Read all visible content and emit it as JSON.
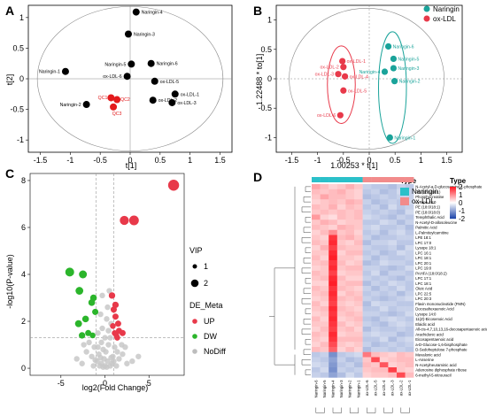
{
  "panels": [
    {
      "label": "A"
    },
    {
      "label": "B"
    },
    {
      "label": "C"
    },
    {
      "label": "D"
    }
  ],
  "chart_data": [
    {
      "type": "scatter",
      "xlabel": "t[1]",
      "ylabel": "t[2]",
      "xlim": [
        -1.7,
        1.7
      ],
      "ylim": [
        -1.2,
        1.2
      ],
      "xticks": [
        "-1.5",
        "-1",
        "-0.5",
        "0",
        "0.5",
        "1",
        "1.5"
      ],
      "yticks": [
        "-1",
        "-0.5",
        "0",
        "0.5",
        "1"
      ],
      "xtick_values": [
        -1.5,
        -1,
        -0.5,
        0,
        0.5,
        1,
        1.5
      ],
      "ytick_values": [
        -1,
        -0.5,
        0,
        0.5,
        1
      ],
      "points": [
        {
          "label": "Naringin-4",
          "x": 0.1,
          "y": 1.09,
          "color": "#000000"
        },
        {
          "label": "Naringin-3",
          "x": -0.03,
          "y": 0.73,
          "color": "#000000"
        },
        {
          "label": "Naringin-1",
          "x": -1.08,
          "y": 0.12,
          "color": "#000000"
        },
        {
          "label": "Naringin-5",
          "x": 0.02,
          "y": 0.24,
          "color": "#000000"
        },
        {
          "label": "Naringin-6",
          "x": 0.35,
          "y": 0.25,
          "color": "#000000"
        },
        {
          "label": "ox-LDL-6",
          "x": -0.05,
          "y": 0.04,
          "color": "#000000"
        },
        {
          "label": "ox-LDL-5",
          "x": 0.41,
          "y": -0.04,
          "color": "#000000"
        },
        {
          "label": "ox-LDL-1",
          "x": 0.75,
          "y": -0.25,
          "color": "#000000"
        },
        {
          "label": "ox-LDL-2",
          "x": 0.38,
          "y": -0.35,
          "color": "#000000"
        },
        {
          "label": "ox-LDL-3",
          "x": 0.7,
          "y": -0.39,
          "color": "#000000"
        },
        {
          "label": "Naringin-2",
          "x": -0.73,
          "y": -0.42,
          "color": "#000000"
        },
        {
          "label": "QC1",
          "x": -0.32,
          "y": -0.31,
          "color": "#e31a1c"
        },
        {
          "label": "QC2",
          "x": -0.22,
          "y": -0.34,
          "color": "#e31a1c"
        },
        {
          "label": "QC3",
          "x": -0.28,
          "y": -0.46,
          "color": "#e31a1c"
        }
      ]
    },
    {
      "type": "scatter",
      "xlabel": "1.00253 * t[1]",
      "ylabel": "1.22488 * to[1]",
      "xlim": [
        -1.8,
        1.8
      ],
      "ylim": [
        -1.25,
        1.25
      ],
      "xticks": [
        "-1.5",
        "-1",
        "-0.5",
        "0",
        "0.5",
        "1",
        "1.5"
      ],
      "yticks": [
        "-1",
        "-0.5",
        "0",
        "0.5",
        "1"
      ],
      "xtick_values": [
        -1.5,
        -1,
        -0.5,
        0,
        0.5,
        1,
        1.5
      ],
      "ytick_values": [
        -1,
        -0.5,
        0,
        0.5,
        1
      ],
      "legend": [
        "Naringin",
        "ox-LDL"
      ],
      "legend_colors": [
        "#1aa39a",
        "#e8394a"
      ],
      "points": [
        {
          "label": "Naringin-6",
          "x": 0.37,
          "y": 0.55,
          "color": "#1aa39a"
        },
        {
          "label": "Naringin-5",
          "x": 0.47,
          "y": 0.34,
          "color": "#1aa39a"
        },
        {
          "label": "Naringin-4",
          "x": 0.3,
          "y": 0.12,
          "color": "#1aa39a"
        },
        {
          "label": "Naringin-3",
          "x": 0.47,
          "y": 0.18,
          "color": "#1aa39a"
        },
        {
          "label": "Naringin-2",
          "x": 0.49,
          "y": -0.04,
          "color": "#1aa39a"
        },
        {
          "label": "Naringin-1",
          "x": 0.4,
          "y": -1.0,
          "color": "#1aa39a"
        },
        {
          "label": "ox-LDL-1",
          "x": -0.52,
          "y": 0.3,
          "color": "#e8394a"
        },
        {
          "label": "ox-LDL-2",
          "x": -0.5,
          "y": 0.2,
          "color": "#e8394a"
        },
        {
          "label": "ox-LDL-3",
          "x": -0.6,
          "y": 0.08,
          "color": "#e8394a"
        },
        {
          "label": "ox-LDL-4",
          "x": -0.47,
          "y": 0.04,
          "color": "#e8394a"
        },
        {
          "label": "ox-LDL-5",
          "x": -0.5,
          "y": -0.2,
          "color": "#e8394a"
        },
        {
          "label": "ox-LDL-6",
          "x": -0.56,
          "y": -0.62,
          "color": "#e8394a"
        }
      ]
    },
    {
      "type": "scatter",
      "xlabel": "log2(Fold Change)",
      "ylabel": "-log10(P-value)",
      "xlim": [
        -8.5,
        9
      ],
      "ylim": [
        -0.3,
        8.3
      ],
      "xticks": [
        "-5",
        "0",
        "5"
      ],
      "yticks": [
        "0",
        "2",
        "4",
        "6",
        "8"
      ],
      "xtick_values": [
        -5,
        0,
        5
      ],
      "ytick_values": [
        0,
        2,
        4,
        6,
        8
      ],
      "threshold_y": 1.3,
      "threshold_x": [
        -1,
        1
      ],
      "legend_size_title": "VIP",
      "legend_size": [
        "1",
        "2"
      ],
      "legend_color_title": "DE_Meta",
      "legend_color": [
        "UP",
        "DW",
        "NoDiff"
      ],
      "legend_color_values": [
        "#e8394a",
        "#2bb52b",
        "#bdbdbd"
      ],
      "up_points": [
        [
          7.8,
          7.8
        ],
        [
          2.2,
          6.3
        ],
        [
          3.3,
          6.3
        ],
        [
          0.8,
          3.1
        ],
        [
          1.0,
          2.5
        ],
        [
          1.2,
          2.2
        ],
        [
          1.5,
          1.9
        ],
        [
          0.9,
          1.8
        ],
        [
          1.6,
          1.6
        ],
        [
          1.1,
          1.5
        ],
        [
          1.3,
          1.4
        ],
        [
          2.0,
          1.5
        ],
        [
          1.4,
          1.3
        ],
        [
          1.2,
          2.7
        ]
      ],
      "dw_points": [
        [
          -4.0,
          4.1
        ],
        [
          -2.5,
          4.0
        ],
        [
          -2.9,
          3.3
        ],
        [
          -1.3,
          3.0
        ],
        [
          -1.1,
          2.4
        ],
        [
          -2.2,
          2.1
        ],
        [
          -3.0,
          1.9
        ],
        [
          -1.9,
          1.5
        ],
        [
          -1.4,
          1.4
        ],
        [
          -2.6,
          1.4
        ],
        [
          -1.5,
          2.8
        ]
      ],
      "nodiff_points": [
        [
          0.5,
          3.3
        ],
        [
          -0.3,
          3.1
        ],
        [
          0.3,
          2.6
        ],
        [
          -0.5,
          2.3
        ],
        [
          0.2,
          2.1
        ],
        [
          0.7,
          1.9
        ],
        [
          -0.8,
          1.5
        ],
        [
          0.6,
          1.3
        ],
        [
          -0.4,
          1.1
        ],
        [
          0.4,
          1.0
        ],
        [
          -1.2,
          0.9
        ],
        [
          1.1,
          0.9
        ],
        [
          -0.2,
          0.8
        ],
        [
          0.1,
          0.7
        ],
        [
          -2.1,
          0.7
        ],
        [
          2.0,
          0.6
        ],
        [
          -0.7,
          0.6
        ],
        [
          0.9,
          0.5
        ],
        [
          -1.5,
          0.5
        ],
        [
          1.6,
          0.4
        ],
        [
          -0.1,
          0.4
        ],
        [
          0.3,
          0.3
        ],
        [
          -0.9,
          0.3
        ],
        [
          0.8,
          0.2
        ],
        [
          -0.4,
          0.2
        ],
        [
          2.5,
          0.2
        ],
        [
          -2.6,
          0.2
        ],
        [
          0.0,
          0.1
        ],
        [
          0.6,
          0.1
        ],
        [
          -0.6,
          0.1
        ],
        [
          1.3,
          0.1
        ],
        [
          -1.3,
          0.1
        ],
        [
          0.2,
          0.05
        ],
        [
          -0.2,
          0.05
        ],
        [
          3.1,
          0.3
        ],
        [
          -3.2,
          0.4
        ],
        [
          1.9,
          1.0
        ],
        [
          -1.8,
          1.1
        ],
        [
          0.4,
          1.6
        ],
        [
          -0.3,
          1.7
        ],
        [
          2.3,
          0.9
        ],
        [
          -2.4,
          1.0
        ],
        [
          0.0,
          1.3
        ],
        [
          -0.8,
          0.9
        ],
        [
          1.4,
          0.7
        ],
        [
          3.8,
          0.5
        ],
        [
          -0.5,
          0.45
        ],
        [
          0.7,
          0.45
        ],
        [
          -1.1,
          0.35
        ],
        [
          1.0,
          0.3
        ]
      ]
    },
    {
      "type": "heatmap",
      "title": "",
      "type_legend_title": "Type",
      "legend_title": "Type",
      "columns": [
        "Naringin-6",
        "Naringin-5",
        "Naringin-4",
        "Naringin-3",
        "Naringin-2",
        "Naringin-1",
        "ox-LDL-6",
        "ox-LDL-5",
        "ox-LDL-4",
        "ox-LDL-3",
        "ox-LDL-2",
        "ox-LDL-1"
      ],
      "groups": [
        "Naringin",
        "ox-LDL"
      ],
      "group_colors": [
        "#2bc0c9",
        "#f28b8b"
      ],
      "scale_ticks": [
        "2",
        "1",
        "0",
        "-1",
        "-2"
      ],
      "scale_values": [
        2,
        1,
        0,
        -1,
        -2
      ],
      "rows": [
        "N-Acetyl-a-D-glucosamine 1-phosphate",
        "PG (18:1/18:1)",
        "Phosphocreatine",
        "Lysope 18:0",
        "PE (18:0/18:1)",
        "PE (18:0/18:0)",
        "Terephthalic Acid",
        "N-Acetyl-D-allosoleucine",
        "Palmitic Acid",
        "L-Palmitoylcarnitine",
        "LPE 18:1",
        "LPC 17:0",
        "Lysope 18:1",
        "LPC 16:1",
        "LPC 18:1",
        "LPC 20:1",
        "LPC 19:0",
        "PAHFA (18:0/18:2)",
        "LPC 17:1",
        "LPC 18:1",
        "Oleic Acid",
        "LPC 22:5",
        "LPC 20:3",
        "Flavin mononucleotide (FMN)",
        "Docosahexaenoic Acid",
        "Lysope 14:0",
        "11(Z)-Eicosenoic Acid",
        "Elaidic acid",
        "All-cis-4,7,10,13,16-docosapentaenoic acid",
        "Arachidonic acid",
        "Eicosapentaenoic acid",
        "a-D-Glucose-1,6-bisphosphate",
        "D-Sedoheptulose 7-phosphate",
        "Mevalonic acid",
        "L-Anserine",
        "N-Acetylneuraminic acid",
        "Adenosine diphosphate ribose",
        "6-methyl-5-nitrouracil"
      ],
      "values": [
        [
          0.8,
          0.6,
          0.4,
          0.5,
          0.7,
          0.5,
          -0.5,
          -0.6,
          -0.6,
          -0.7,
          -0.5,
          -0.6
        ],
        [
          0.6,
          0.5,
          0.6,
          0.7,
          0.5,
          0.4,
          -0.6,
          -0.5,
          -0.7,
          -0.6,
          -0.4,
          -0.5
        ],
        [
          0.5,
          0.8,
          0.6,
          0.6,
          0.5,
          0.4,
          -0.7,
          -0.6,
          -0.5,
          -0.6,
          -0.5,
          -0.5
        ],
        [
          0.4,
          0.5,
          0.6,
          0.5,
          0.7,
          0.6,
          -0.5,
          -0.7,
          -0.6,
          -0.5,
          -0.6,
          -0.4
        ],
        [
          0.6,
          0.5,
          0.7,
          0.4,
          0.6,
          0.5,
          -0.6,
          -0.5,
          -0.7,
          -0.4,
          -0.6,
          -0.5
        ],
        [
          0.5,
          0.6,
          0.5,
          0.6,
          0.5,
          0.6,
          -0.5,
          -0.6,
          -0.5,
          -0.6,
          -0.7,
          -0.4
        ],
        [
          0.9,
          0.4,
          0.3,
          0.6,
          0.5,
          0.6,
          -0.4,
          -0.5,
          -0.6,
          -0.7,
          -0.5,
          -0.6
        ],
        [
          0.5,
          0.7,
          0.6,
          0.4,
          0.5,
          0.5,
          -0.6,
          -0.6,
          -0.4,
          -0.5,
          -0.7,
          -0.5
        ],
        [
          0.6,
          0.5,
          0.4,
          0.7,
          0.6,
          0.5,
          -0.5,
          -0.4,
          -0.6,
          -0.6,
          -0.5,
          -0.7
        ],
        [
          0.4,
          0.6,
          1.0,
          0.5,
          0.6,
          0.4,
          -0.6,
          -0.5,
          -0.7,
          -0.5,
          -0.4,
          -0.6
        ],
        [
          0.5,
          0.4,
          1.8,
          0.6,
          0.7,
          0.5,
          -0.5,
          -0.7,
          -0.6,
          -0.6,
          -0.5,
          -0.5
        ],
        [
          0.6,
          0.5,
          1.9,
          0.5,
          0.4,
          0.6,
          -0.7,
          -0.5,
          -0.5,
          -0.4,
          -0.6,
          -0.6
        ],
        [
          0.4,
          0.7,
          1.7,
          0.6,
          0.5,
          0.5,
          -0.5,
          -0.6,
          -0.6,
          -0.5,
          -0.7,
          -0.4
        ],
        [
          0.5,
          0.5,
          1.9,
          0.4,
          0.6,
          0.6,
          -0.6,
          -0.5,
          -0.7,
          -0.6,
          -0.4,
          -0.5
        ],
        [
          0.6,
          0.4,
          2.0,
          0.5,
          0.5,
          0.4,
          -0.5,
          -0.7,
          -0.5,
          -0.6,
          -0.6,
          -0.5
        ],
        [
          0.5,
          0.6,
          1.8,
          0.6,
          0.4,
          0.5,
          -0.7,
          -0.6,
          -0.4,
          -0.5,
          -0.5,
          -0.6
        ],
        [
          0.4,
          0.5,
          1.9,
          0.5,
          0.6,
          0.6,
          -0.5,
          -0.5,
          -0.6,
          -0.7,
          -0.6,
          -0.4
        ],
        [
          0.6,
          0.5,
          1.7,
          0.4,
          0.5,
          0.5,
          -0.6,
          -0.4,
          -0.7,
          -0.5,
          -0.5,
          -0.6
        ],
        [
          0.5,
          0.6,
          1.9,
          0.6,
          0.4,
          0.4,
          -0.5,
          -0.6,
          -0.5,
          -0.6,
          -0.7,
          -0.5
        ],
        [
          0.4,
          0.4,
          2.0,
          0.5,
          0.6,
          0.6,
          -0.7,
          -0.5,
          -0.6,
          -0.4,
          -0.5,
          -0.6
        ],
        [
          0.6,
          0.5,
          1.8,
          0.6,
          0.5,
          0.4,
          -0.5,
          -0.7,
          -0.5,
          -0.6,
          -0.4,
          -0.6
        ],
        [
          0.5,
          0.6,
          1.9,
          0.4,
          0.6,
          0.5,
          -0.6,
          -0.5,
          -0.6,
          -0.5,
          -0.7,
          -0.5
        ],
        [
          0.4,
          0.5,
          1.8,
          0.6,
          0.5,
          0.6,
          -0.5,
          -0.6,
          -0.7,
          -0.6,
          -0.5,
          -0.4
        ],
        [
          0.6,
          0.4,
          1.7,
          0.5,
          0.4,
          0.5,
          -0.7,
          -0.4,
          -0.5,
          -0.5,
          -0.6,
          -0.6
        ],
        [
          0.5,
          0.6,
          1.9,
          0.6,
          0.5,
          0.4,
          -0.6,
          -0.6,
          -0.4,
          -0.6,
          -0.5,
          -0.5
        ],
        [
          0.4,
          0.5,
          1.8,
          0.5,
          0.6,
          0.5,
          -0.5,
          -0.5,
          -0.6,
          -0.7,
          -0.6,
          -0.4
        ],
        [
          0.6,
          0.4,
          1.9,
          0.4,
          0.5,
          0.6,
          -0.6,
          -0.7,
          -0.5,
          -0.4,
          -0.5,
          -0.6
        ],
        [
          0.5,
          0.5,
          1.8,
          0.6,
          0.4,
          0.5,
          -0.5,
          -0.6,
          -0.7,
          -0.5,
          -0.4,
          -0.5
        ],
        [
          0.4,
          0.6,
          1.7,
          0.5,
          0.6,
          0.4,
          -0.7,
          -0.5,
          -0.6,
          -0.6,
          -0.5,
          -0.6
        ],
        [
          0.6,
          0.5,
          1.9,
          0.4,
          0.5,
          0.5,
          -0.5,
          -0.4,
          -0.5,
          -0.5,
          -0.7,
          -0.6
        ],
        [
          0.5,
          0.4,
          1.8,
          0.6,
          0.6,
          0.6,
          -0.6,
          -0.6,
          -0.4,
          -0.7,
          -0.5,
          -0.4
        ],
        [
          0.4,
          0.6,
          1.6,
          0.5,
          0.4,
          0.5,
          -0.5,
          -0.7,
          -0.6,
          -0.5,
          -0.6,
          -0.5
        ],
        [
          0.6,
          0.5,
          1.4,
          0.4,
          0.6,
          0.4,
          -0.7,
          -0.5,
          -0.5,
          -0.6,
          -0.5,
          -0.6
        ],
        [
          -0.6,
          -0.5,
          -1.2,
          -0.6,
          -0.5,
          -0.4,
          1.2,
          0.6,
          0.5,
          0.4,
          0.6,
          0.5
        ],
        [
          -0.5,
          -0.6,
          -1.0,
          -0.5,
          -0.7,
          -0.6,
          0.5,
          1.6,
          0.4,
          0.5,
          0.6,
          0.6
        ],
        [
          -0.4,
          -0.5,
          -1.1,
          -0.6,
          -0.5,
          -0.7,
          0.6,
          0.5,
          1.5,
          0.4,
          0.5,
          0.6
        ],
        [
          -0.6,
          -0.4,
          -1.2,
          -0.5,
          -0.6,
          -0.5,
          0.5,
          0.6,
          0.6,
          1.7,
          0.5,
          0.4
        ],
        [
          -0.5,
          -0.6,
          -1.0,
          -0.7,
          -0.4,
          -0.6,
          0.4,
          0.5,
          0.5,
          0.6,
          1.6,
          0.6
        ]
      ]
    }
  ]
}
